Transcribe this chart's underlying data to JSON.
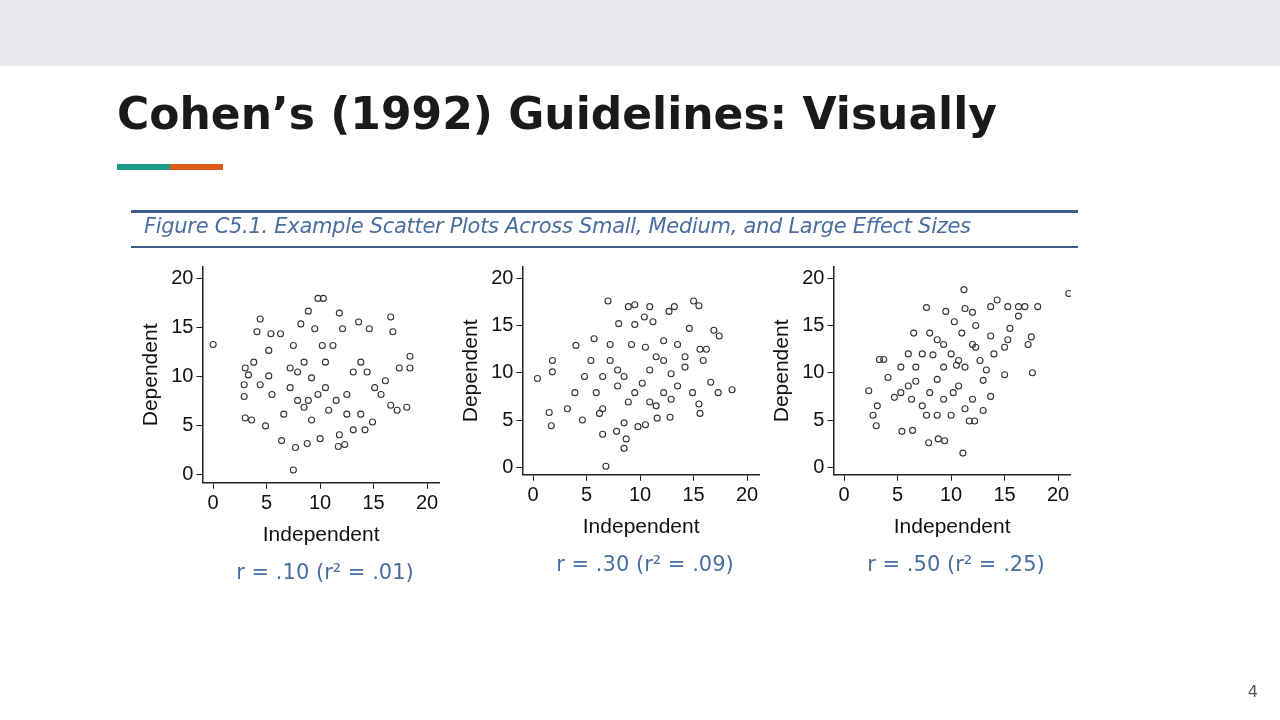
{
  "chart_data": [
    {
      "type": "scatter",
      "title": "Cohen’s (1992) Guidelines: Visually",
      "subtitle": "Figure C5.1. Example Scatter Plots Across Small, Medium, and Large Effect Sizes",
      "xlabel": "Independent",
      "ylabel": "Dependent",
      "annotations": [
        "r = .10 (r² = .01)",
        "4"
      ],
      "marker": "circle",
      "grid": false,
      "color": "#333333",
      "xlim": [
        -1,
        21.2
      ],
      "ylim": [
        -0.8,
        21.2
      ],
      "xticks": [
        0,
        5,
        10,
        15,
        20
      ],
      "yticks": [
        0,
        5,
        10,
        15,
        20
      ],
      "x": [
        0,
        7.5,
        9.8,
        10.3,
        4.4,
        4.1,
        16.6,
        16.8,
        18.4,
        18.4,
        3.0,
        2.9,
        2.9,
        3.0,
        3.6,
        4.9,
        6.4,
        7.7,
        8.8,
        10.0,
        11.8,
        11.7,
        12.3,
        13.1,
        14.2,
        14.9,
        18.1,
        17.2,
        16.6,
        16.1,
        17.4,
        13.6,
        14.6,
        8.9,
        8.2,
        5.4,
        6.3,
        5.2,
        3.8,
        3.3,
        4.4,
        5.2,
        5.5,
        7.2,
        7.9,
        8.5,
        9.2,
        9.8,
        10.5,
        11.2,
        11.8,
        12.1,
        8.5,
        9.2,
        10.5,
        11.5,
        12.5,
        13.1,
        13.8,
        14.4,
        15.1,
        15.7,
        10.2,
        9.5,
        7.5,
        7.2,
        7.9,
        8.9,
        10.8,
        12.5,
        13.8,
        6.6
      ],
      "values": [
        13.3,
        0.5,
        18.0,
        18.0,
        15.9,
        14.6,
        16.1,
        14.6,
        12.1,
        10.9,
        10.9,
        9.2,
        8.0,
        5.8,
        5.6,
        5.0,
        3.5,
        2.8,
        3.2,
        3.7,
        4.1,
        2.9,
        3.1,
        4.6,
        4.6,
        5.4,
        6.9,
        6.6,
        7.1,
        9.6,
        10.9,
        15.6,
        14.9,
        16.7,
        15.4,
        14.4,
        14.4,
        12.7,
        11.5,
        10.2,
        9.2,
        10.1,
        8.2,
        8.9,
        7.6,
        6.9,
        5.6,
        8.2,
        11.5,
        13.2,
        16.5,
        14.9,
        11.5,
        9.9,
        8.9,
        7.6,
        8.2,
        10.5,
        11.5,
        10.5,
        8.9,
        8.2,
        13.2,
        14.9,
        13.2,
        10.9,
        10.5,
        7.6,
        6.6,
        6.2,
        6.2,
        6.2
      ]
    },
    {
      "type": "scatter",
      "xlabel": "Independent",
      "ylabel": "Dependent",
      "annotations": [
        "r = .30 (r² = .09)"
      ],
      "marker": "circle",
      "grid": false,
      "color": "#333333",
      "xlim": [
        -1,
        21.2
      ],
      "ylim": [
        -0.8,
        21.2
      ],
      "xticks": [
        0,
        5,
        10,
        15,
        20
      ],
      "yticks": [
        0,
        5,
        10,
        15,
        20
      ],
      "x": [
        0.4,
        1.5,
        1.7,
        1.8,
        1.8,
        3.2,
        3.9,
        4.6,
        4.0,
        5.7,
        7.0,
        6.8,
        8.5,
        8.7,
        7.8,
        6.5,
        6.2,
        8.9,
        9.5,
        10.9,
        12.7,
        13.2,
        15.0,
        15.5,
        16.9,
        17.4,
        18.6,
        17.3,
        16.6,
        15.6,
        15.5,
        12.8,
        11.6,
        10.5,
        9.8,
        8.5,
        7.9,
        7.2,
        8.0,
        9.5,
        10.4,
        11.2,
        12.2,
        13.5,
        14.6,
        15.6,
        16.2,
        15.9,
        14.2,
        12.9,
        12.2,
        11.5,
        10.9,
        10.2,
        9.5,
        8.9,
        8.5,
        7.9,
        6.5,
        5.9,
        5.4,
        4.8,
        10.9,
        12.2,
        13.5,
        14.9,
        14.2,
        10.5,
        9.2,
        7.2,
        6.5,
        11.5,
        12.9
      ],
      "values": [
        9.4,
        5.8,
        4.4,
        10.1,
        11.3,
        6.2,
        7.9,
        5.0,
        12.9,
        13.6,
        17.6,
        0.1,
        2.0,
        3.0,
        3.8,
        3.5,
        5.7,
        17.0,
        17.2,
        17.0,
        16.5,
        17.0,
        17.6,
        17.1,
        14.5,
        13.9,
        8.2,
        7.9,
        9.0,
        5.7,
        6.7,
        5.3,
        5.2,
        4.5,
        4.3,
        4.7,
        8.6,
        11.3,
        15.2,
        15.1,
        15.9,
        15.4,
        13.4,
        13.0,
        14.7,
        12.5,
        12.5,
        11.3,
        10.6,
        9.9,
        11.3,
        11.7,
        10.3,
        8.9,
        7.9,
        6.9,
        9.6,
        10.3,
        9.6,
        7.9,
        11.3,
        9.6,
        6.9,
        7.9,
        8.6,
        7.9,
        11.7,
        12.7,
        13.0,
        13.0,
        6.2,
        6.5,
        7.2
      ]
    },
    {
      "type": "scatter",
      "xlabel": "Independent",
      "ylabel": "Dependent",
      "annotations": [
        "r = .50 (r² = .25)"
      ],
      "marker": "circle",
      "grid": false,
      "color": "#333333",
      "xlim": [
        -1,
        21.2
      ],
      "ylim": [
        -0.8,
        21.2
      ],
      "xticks": [
        0,
        5,
        10,
        15,
        20
      ],
      "yticks": [
        0,
        5,
        10,
        15,
        20
      ],
      "x": [
        2.3,
        2.7,
        3.0,
        3.1,
        3.3,
        3.7,
        4.1,
        5.3,
        5.4,
        6.4,
        7.7,
        7.9,
        8.8,
        9.4,
        11.2,
        11.1,
        11.7,
        12.2,
        10.3,
        9.5,
        11.3,
        12.0,
        13.7,
        14.3,
        15.3,
        16.3,
        16.9,
        18.1,
        21.0,
        17.6,
        17.5,
        17.2,
        16.3,
        15.5,
        15.0,
        14.0,
        15.0,
        13.3,
        12.7,
        12.0,
        12.3,
        11.0,
        10.0,
        9.3,
        8.7,
        8.0,
        7.3,
        6.3,
        6.0,
        6.7,
        7.3,
        8.7,
        8.0,
        6.5,
        5.3,
        6.0,
        10.7,
        12.0,
        13.0,
        13.7,
        13.0,
        11.3,
        10.0,
        8.7,
        7.7,
        9.3,
        10.2,
        11.3,
        10.7,
        12.3,
        13.7,
        15.3,
        4.7,
        6.7,
        8.3,
        9.3,
        10.5
      ],
      "values": [
        8.1,
        5.5,
        4.4,
        6.5,
        11.4,
        11.4,
        9.5,
        7.9,
        3.8,
        3.9,
        16.9,
        2.6,
        3.0,
        2.8,
        18.8,
        1.5,
        4.9,
        4.9,
        15.4,
        16.5,
        16.8,
        16.4,
        17.0,
        17.7,
        17.0,
        17.0,
        17.0,
        17.0,
        18.4,
        10.0,
        13.8,
        13.0,
        16.0,
        14.7,
        12.7,
        12.0,
        9.8,
        10.3,
        11.3,
        13.0,
        15.0,
        14.2,
        12.0,
        10.6,
        9.3,
        7.9,
        6.5,
        7.2,
        8.6,
        10.6,
        12.0,
        13.5,
        14.2,
        14.2,
        10.6,
        12.0,
        8.6,
        7.2,
        9.2,
        7.5,
        6.0,
        6.2,
        5.5,
        5.5,
        5.5,
        7.2,
        7.9,
        10.6,
        11.3,
        12.7,
        13.9,
        13.5,
        7.4,
        9.1,
        11.9,
        13.0,
        10.8
      ]
    }
  ]
}
